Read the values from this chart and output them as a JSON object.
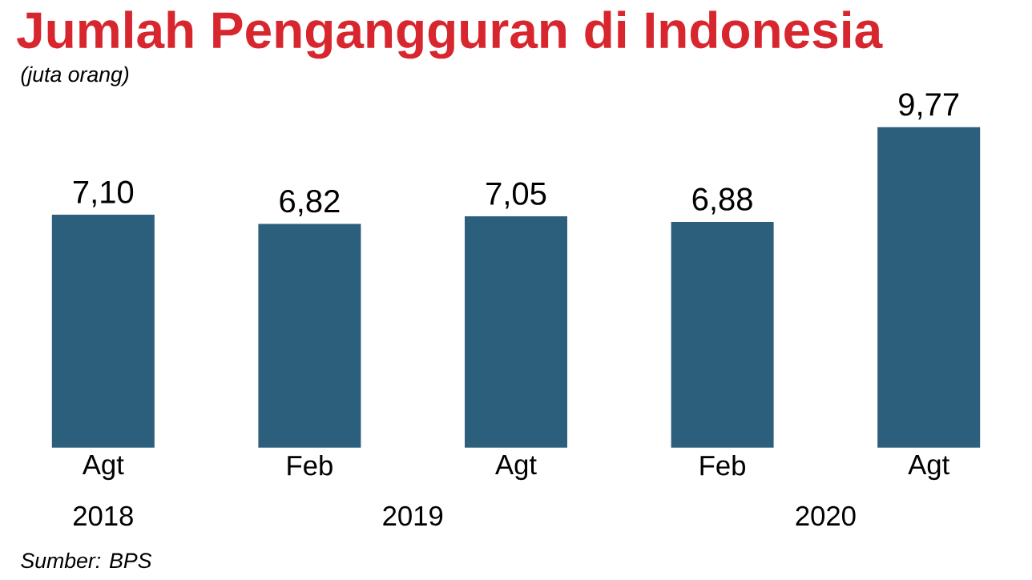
{
  "chart_data": {
    "type": "bar",
    "title": "Jumlah Pengangguran di Indonesia",
    "subtitle": "(juta orang)",
    "categories": [
      "Agt",
      "Feb",
      "Agt",
      "Feb",
      "Agt"
    ],
    "values": [
      7.1,
      6.82,
      7.05,
      6.88,
      9.77
    ],
    "value_labels": [
      "7,10",
      "6,82",
      "7,05",
      "6,88",
      "9,77"
    ],
    "color": "#2c5f7c",
    "annotations": [
      "2018",
      "2019",
      "2020",
      "Sumber: BPS"
    ]
  }
}
